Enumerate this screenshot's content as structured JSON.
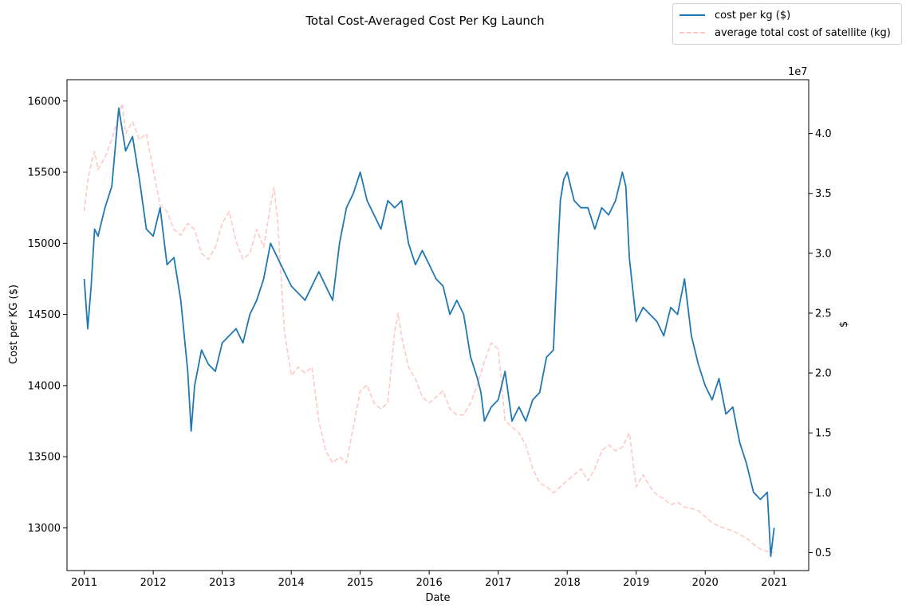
{
  "figure": {
    "title": "Total Cost-Averaged Cost Per Kg Launch",
    "xlabel": "Date",
    "ylabel_left": "Cost per KG ($)",
    "ylabel_right": "$",
    "right_offset_label": "1e7"
  },
  "legend": {
    "placement": "upper-right",
    "items": [
      {
        "label": "cost per kg ($)",
        "style": "solid",
        "color": "#1f77b4"
      },
      {
        "label": "average total cost of satellite (kg)",
        "style": "dashed",
        "color": "#ffc8c3"
      }
    ]
  },
  "chart_data": {
    "type": "line",
    "title": "Total Cost-Averaged Cost Per Kg Launch",
    "xlabel": "Date",
    "ylabel": "Cost per KG ($)",
    "y2label": "$",
    "xlim": [
      2010.75,
      2021.5
    ],
    "ylim": [
      12700,
      16150
    ],
    "y2lim": [
      3500000,
      44500000
    ],
    "xticks": [
      "2011",
      "2012",
      "2013",
      "2014",
      "2015",
      "2016",
      "2017",
      "2018",
      "2019",
      "2020",
      "2021"
    ],
    "yticks": [
      13000,
      13500,
      14000,
      14500,
      15000,
      15500,
      16000
    ],
    "y2ticks": [
      "0.5",
      "1.0",
      "1.5",
      "2.0",
      "2.5",
      "3.0",
      "3.5",
      "4.0"
    ],
    "y2tick_values": [
      5000000,
      10000000,
      15000000,
      20000000,
      25000000,
      30000000,
      35000000,
      40000000
    ],
    "grid": false,
    "series": [
      {
        "name": "cost per kg ($)",
        "axis": "left",
        "color": "#1f77b4",
        "style": "solid",
        "x": [
          2011.0,
          2011.05,
          2011.1,
          2011.15,
          2011.2,
          2011.3,
          2011.4,
          2011.5,
          2011.55,
          2011.6,
          2011.7,
          2011.8,
          2011.9,
          2012.0,
          2012.1,
          2012.2,
          2012.3,
          2012.4,
          2012.5,
          2012.55,
          2012.6,
          2012.7,
          2012.8,
          2012.9,
          2013.0,
          2013.1,
          2013.2,
          2013.3,
          2013.4,
          2013.5,
          2013.6,
          2013.7,
          2013.8,
          2013.9,
          2014.0,
          2014.1,
          2014.2,
          2014.3,
          2014.4,
          2014.5,
          2014.6,
          2014.7,
          2014.8,
          2014.9,
          2015.0,
          2015.1,
          2015.2,
          2015.3,
          2015.4,
          2015.5,
          2015.6,
          2015.7,
          2015.8,
          2015.9,
          2016.0,
          2016.1,
          2016.2,
          2016.3,
          2016.4,
          2016.5,
          2016.6,
          2016.7,
          2016.75,
          2016.8,
          2016.9,
          2017.0,
          2017.1,
          2017.2,
          2017.3,
          2017.4,
          2017.5,
          2017.6,
          2017.7,
          2017.8,
          2017.85,
          2017.9,
          2017.95,
          2018.0,
          2018.1,
          2018.2,
          2018.3,
          2018.4,
          2018.5,
          2018.6,
          2018.7,
          2018.8,
          2018.85,
          2018.9,
          2019.0,
          2019.1,
          2019.2,
          2019.3,
          2019.4,
          2019.5,
          2019.6,
          2019.7,
          2019.8,
          2019.9,
          2020.0,
          2020.1,
          2020.2,
          2020.3,
          2020.4,
          2020.5,
          2020.6,
          2020.7,
          2020.8,
          2020.9,
          2020.95,
          2021.0
        ],
        "y": [
          14750,
          14400,
          14700,
          15100,
          15050,
          15250,
          15400,
          15950,
          15800,
          15650,
          15750,
          15450,
          15100,
          15050,
          15250,
          14850,
          14900,
          14600,
          14100,
          13680,
          14000,
          14250,
          14150,
          14100,
          14300,
          14350,
          14400,
          14300,
          14500,
          14600,
          14750,
          15000,
          14900,
          14800,
          14700,
          14650,
          14600,
          14700,
          14800,
          14700,
          14600,
          15000,
          15250,
          15350,
          15500,
          15300,
          15200,
          15100,
          15300,
          15250,
          15300,
          15000,
          14850,
          14950,
          14850,
          14750,
          14700,
          14500,
          14600,
          14500,
          14200,
          14050,
          13950,
          13750,
          13850,
          13900,
          14100,
          13750,
          13850,
          13750,
          13900,
          13950,
          14200,
          14250,
          14800,
          15300,
          15450,
          15500,
          15300,
          15250,
          15250,
          15100,
          15250,
          15200,
          15300,
          15500,
          15400,
          14900,
          14450,
          14550,
          14500,
          14450,
          14350,
          14550,
          14500,
          14750,
          14350,
          14150,
          14000,
          13900,
          14050,
          13800,
          13850,
          13600,
          13450,
          13250,
          13200,
          13250,
          12800,
          13000
        ]
      },
      {
        "name": "average total cost of satellite (kg)",
        "axis": "right",
        "color": "#ffc8c3",
        "style": "dashed",
        "x": [
          2011.0,
          2011.05,
          2011.1,
          2011.15,
          2011.2,
          2011.3,
          2011.4,
          2011.5,
          2011.55,
          2011.6,
          2011.7,
          2011.8,
          2011.9,
          2012.0,
          2012.1,
          2012.2,
          2012.3,
          2012.4,
          2012.5,
          2012.6,
          2012.7,
          2012.8,
          2012.9,
          2013.0,
          2013.1,
          2013.2,
          2013.3,
          2013.4,
          2013.5,
          2013.6,
          2013.7,
          2013.75,
          2013.8,
          2013.9,
          2014.0,
          2014.1,
          2014.2,
          2014.3,
          2014.4,
          2014.5,
          2014.6,
          2014.7,
          2014.8,
          2014.9,
          2015.0,
          2015.1,
          2015.2,
          2015.3,
          2015.4,
          2015.5,
          2015.55,
          2015.6,
          2015.7,
          2015.8,
          2015.9,
          2016.0,
          2016.1,
          2016.2,
          2016.3,
          2016.4,
          2016.5,
          2016.6,
          2016.7,
          2016.8,
          2016.9,
          2017.0,
          2017.1,
          2017.2,
          2017.3,
          2017.4,
          2017.5,
          2017.6,
          2017.7,
          2017.8,
          2017.9,
          2018.0,
          2018.1,
          2018.2,
          2018.3,
          2018.4,
          2018.5,
          2018.6,
          2018.7,
          2018.8,
          2018.9,
          2019.0,
          2019.1,
          2019.2,
          2019.3,
          2019.4,
          2019.5,
          2019.6,
          2019.7,
          2019.8,
          2019.9,
          2020.0,
          2020.1,
          2020.2,
          2020.3,
          2020.4,
          2020.5,
          2020.6,
          2020.7,
          2020.8,
          2020.9,
          2021.0
        ],
        "y": [
          33500000,
          36000000,
          37500000,
          38500000,
          37000000,
          38000000,
          39500000,
          41500000,
          42500000,
          40000000,
          41000000,
          39500000,
          40000000,
          37000000,
          34000000,
          33500000,
          32000000,
          31500000,
          32500000,
          32000000,
          30000000,
          29500000,
          30500000,
          32500000,
          33500000,
          31000000,
          29500000,
          30000000,
          32000000,
          30500000,
          34000000,
          35500000,
          33000000,
          23500000,
          19800000,
          20500000,
          20000000,
          20500000,
          16000000,
          13500000,
          12500000,
          13000000,
          12500000,
          15500000,
          18500000,
          19000000,
          17500000,
          17000000,
          17500000,
          23500000,
          25000000,
          23000000,
          20500000,
          19500000,
          18000000,
          17500000,
          18000000,
          18500000,
          17000000,
          16500000,
          16500000,
          17500000,
          19000000,
          21000000,
          22500000,
          22000000,
          16000000,
          15500000,
          15000000,
          14000000,
          12000000,
          10800000,
          10500000,
          10000000,
          10500000,
          11000000,
          11500000,
          12000000,
          11000000,
          12000000,
          13500000,
          14000000,
          13500000,
          13800000,
          15000000,
          10500000,
          11500000,
          10500000,
          9800000,
          9500000,
          9000000,
          9200000,
          8800000,
          8700000,
          8500000,
          8000000,
          7500000,
          7200000,
          7000000,
          6800000,
          6500000,
          6200000,
          5700000,
          5300000,
          5100000,
          5000000
        ]
      }
    ]
  }
}
